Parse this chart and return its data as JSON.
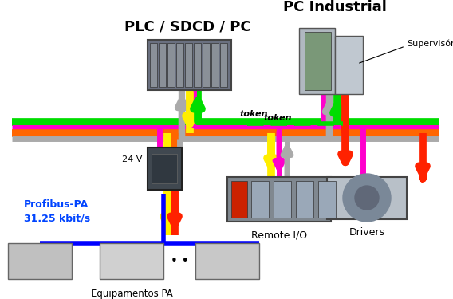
{
  "background_color": "#ffffff",
  "figsize": [
    5.68,
    3.75
  ],
  "dpi": 100,
  "labels": {
    "plc": "PLC / SDCD / PC",
    "pc_industrial": "PC Industrial",
    "supervisorio": "Supervisório",
    "token1": "token",
    "token2": "token",
    "v24": "24 V",
    "profibus": "Profibus-PA\n31.25 kbit/s",
    "remote_io": "Remote I/O",
    "drivers": "Drivers",
    "equipamentos": "Equipamentos PA",
    "dots": "• •"
  },
  "colors": {
    "pink": "#FF00CC",
    "green": "#00DD00",
    "yellow": "#FFEE00",
    "red": "#FF2200",
    "gray": "#AAAAAA",
    "orange": "#FF6600",
    "blue": "#0000FF",
    "black": "#000000",
    "white": "#FFFFFF",
    "profibus_blue": "#0044FF"
  }
}
